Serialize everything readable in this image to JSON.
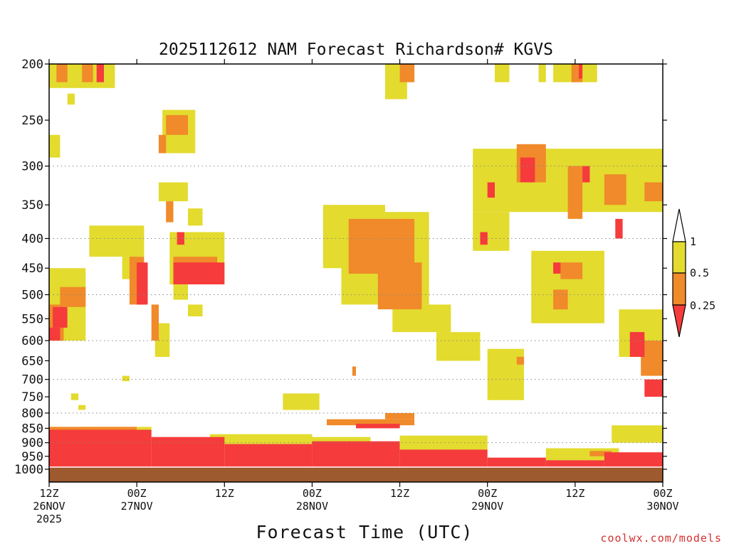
{
  "chart_data": {
    "type": "heatmap",
    "title": "2025112612 NAM Forecast Richardson# KGVS",
    "xlabel": "Forecast Time (UTC)",
    "ylabel": "",
    "y_scale": "log-pressure (hPa, inverted)",
    "ylim": [
      1000,
      200
    ],
    "xlim_hours": [
      0,
      84
    ],
    "y_ticks": [
      200,
      250,
      300,
      350,
      400,
      450,
      500,
      550,
      600,
      650,
      700,
      750,
      800,
      850,
      900,
      950,
      1000
    ],
    "gridlines_at": [
      300,
      400,
      500,
      600,
      700,
      800,
      900
    ],
    "grid": "dotted horizontal lines",
    "x_ticks": [
      {
        "hour": 0,
        "line1": "12Z",
        "line2": "26NOV",
        "line3": "2025"
      },
      {
        "hour": 12,
        "line1": "00Z",
        "line2": "27NOV",
        "line3": ""
      },
      {
        "hour": 24,
        "line1": "12Z",
        "line2": "",
        "line3": ""
      },
      {
        "hour": 36,
        "line1": "00Z",
        "line2": "28NOV",
        "line3": ""
      },
      {
        "hour": 48,
        "line1": "12Z",
        "line2": "",
        "line3": ""
      },
      {
        "hour": 60,
        "line1": "00Z",
        "line2": "29NOV",
        "line3": ""
      },
      {
        "hour": 72,
        "line1": "12Z",
        "line2": "",
        "line3": ""
      },
      {
        "hour": 84,
        "line1": "00Z",
        "line2": "30NOV",
        "line3": ""
      }
    ],
    "colorbar": {
      "placement": "right",
      "bins": [
        {
          "label": "1",
          "color": "#ffffff",
          "range": ">1"
        },
        {
          "label": "0.5",
          "color": "#e3db2e",
          "range": "0.5-1"
        },
        {
          "label": "0.25",
          "color": "#f08a2a",
          "range": "0.25-0.5"
        },
        {
          "label": "",
          "color": "#f53b3b",
          "range": "<0.25"
        }
      ],
      "tick_labels": [
        "1",
        "0.5",
        "0.25"
      ]
    },
    "ground_color": "#9c5a2e",
    "colors": {
      "low": "#f53b3b",
      "mid": "#f08a2a",
      "high": "#e3db2e",
      "ground": "#9c5a2e"
    },
    "regions": [
      {
        "level": "high",
        "t": [
          0,
          9
        ],
        "p": [
          200,
          220
        ]
      },
      {
        "level": "mid",
        "t": [
          1,
          2.5
        ],
        "p": [
          200,
          215
        ]
      },
      {
        "level": "mid",
        "t": [
          4.5,
          6
        ],
        "p": [
          200,
          215
        ]
      },
      {
        "level": "low",
        "t": [
          6.5,
          7.5
        ],
        "p": [
          200,
          215
        ]
      },
      {
        "level": "high",
        "t": [
          2.5,
          3.5
        ],
        "p": [
          225,
          235
        ]
      },
      {
        "level": "high",
        "t": [
          15.5,
          20
        ],
        "p": [
          240,
          285
        ]
      },
      {
        "level": "mid",
        "t": [
          16,
          19
        ],
        "p": [
          245,
          265
        ]
      },
      {
        "level": "mid",
        "t": [
          15,
          16
        ],
        "p": [
          265,
          285
        ]
      },
      {
        "level": "high",
        "t": [
          0,
          1.5
        ],
        "p": [
          265,
          290
        ]
      },
      {
        "level": "high",
        "t": [
          15,
          19
        ],
        "p": [
          320,
          345
        ]
      },
      {
        "level": "mid",
        "t": [
          16,
          17
        ],
        "p": [
          345,
          375
        ]
      },
      {
        "level": "high",
        "t": [
          19,
          21
        ],
        "p": [
          355,
          380
        ]
      },
      {
        "level": "high",
        "t": [
          5.5,
          13
        ],
        "p": [
          380,
          430
        ]
      },
      {
        "level": "high",
        "t": [
          10,
          12
        ],
        "p": [
          430,
          470
        ]
      },
      {
        "level": "mid",
        "t": [
          11,
          13
        ],
        "p": [
          430,
          520
        ]
      },
      {
        "level": "low",
        "t": [
          12,
          13.5
        ],
        "p": [
          440,
          520
        ]
      },
      {
        "level": "mid",
        "t": [
          14,
          15
        ],
        "p": [
          520,
          600
        ]
      },
      {
        "level": "high",
        "t": [
          14.5,
          16.5
        ],
        "p": [
          560,
          640
        ]
      },
      {
        "level": "high",
        "t": [
          16.5,
          24
        ],
        "p": [
          390,
          480
        ]
      },
      {
        "level": "mid",
        "t": [
          17,
          23
        ],
        "p": [
          430,
          460
        ]
      },
      {
        "level": "low",
        "t": [
          17,
          24
        ],
        "p": [
          440,
          480
        ]
      },
      {
        "level": "low",
        "t": [
          17.5,
          18.5
        ],
        "p": [
          390,
          410
        ]
      },
      {
        "level": "high",
        "t": [
          17,
          19
        ],
        "p": [
          480,
          510
        ]
      },
      {
        "level": "high",
        "t": [
          19,
          21
        ],
        "p": [
          520,
          545
        ]
      },
      {
        "level": "high",
        "t": [
          0,
          5
        ],
        "p": [
          450,
          600
        ]
      },
      {
        "level": "mid",
        "t": [
          1.5,
          5
        ],
        "p": [
          485,
          525
        ]
      },
      {
        "level": "mid",
        "t": [
          0,
          2
        ],
        "p": [
          520,
          600
        ]
      },
      {
        "level": "low",
        "t": [
          0.5,
          2.5
        ],
        "p": [
          525,
          570
        ]
      },
      {
        "level": "low",
        "t": [
          0,
          1.5
        ],
        "p": [
          570,
          600
        ]
      },
      {
        "level": "high",
        "t": [
          37.5,
          46
        ],
        "p": [
          350,
          450
        ]
      },
      {
        "level": "high",
        "t": [
          40,
          52
        ],
        "p": [
          360,
          520
        ]
      },
      {
        "level": "mid",
        "t": [
          41,
          50
        ],
        "p": [
          370,
          460
        ]
      },
      {
        "level": "mid",
        "t": [
          45,
          51
        ],
        "p": [
          440,
          530
        ]
      },
      {
        "level": "high",
        "t": [
          47,
          55
        ],
        "p": [
          520,
          580
        ]
      },
      {
        "level": "high",
        "t": [
          53,
          59
        ],
        "p": [
          580,
          650
        ]
      },
      {
        "level": "high",
        "t": [
          46,
          49
        ],
        "p": [
          200,
          230
        ]
      },
      {
        "level": "mid",
        "t": [
          48,
          50
        ],
        "p": [
          200,
          215
        ]
      },
      {
        "level": "high",
        "t": [
          61,
          63
        ],
        "p": [
          200,
          215
        ]
      },
      {
        "level": "high",
        "t": [
          67,
          68
        ],
        "p": [
          200,
          215
        ]
      },
      {
        "level": "high",
        "t": [
          69,
          75
        ],
        "p": [
          200,
          215
        ]
      },
      {
        "level": "mid",
        "t": [
          71.5,
          73
        ],
        "p": [
          200,
          215
        ]
      },
      {
        "level": "low",
        "t": [
          72.5,
          73
        ],
        "p": [
          200,
          212
        ]
      },
      {
        "level": "high",
        "t": [
          58,
          84
        ],
        "p": [
          280,
          360
        ]
      },
      {
        "level": "mid",
        "t": [
          64,
          68
        ],
        "p": [
          275,
          320
        ]
      },
      {
        "level": "low",
        "t": [
          64.5,
          66.5
        ],
        "p": [
          290,
          320
        ]
      },
      {
        "level": "mid",
        "t": [
          71,
          73
        ],
        "p": [
          300,
          370
        ]
      },
      {
        "level": "mid",
        "t": [
          76,
          79
        ],
        "p": [
          310,
          350
        ]
      },
      {
        "level": "mid",
        "t": [
          81.5,
          84
        ],
        "p": [
          320,
          345
        ]
      },
      {
        "level": "low",
        "t": [
          73,
          74
        ],
        "p": [
          300,
          320
        ]
      },
      {
        "level": "low",
        "t": [
          60,
          61
        ],
        "p": [
          320,
          340
        ]
      },
      {
        "level": "low",
        "t": [
          77.5,
          78.5
        ],
        "p": [
          370,
          400
        ]
      },
      {
        "level": "high",
        "t": [
          58,
          63
        ],
        "p": [
          360,
          420
        ]
      },
      {
        "level": "low",
        "t": [
          59,
          60
        ],
        "p": [
          390,
          410
        ]
      },
      {
        "level": "high",
        "t": [
          66,
          76
        ],
        "p": [
          420,
          560
        ]
      },
      {
        "level": "mid",
        "t": [
          70,
          73
        ],
        "p": [
          440,
          470
        ]
      },
      {
        "level": "low",
        "t": [
          69,
          70
        ],
        "p": [
          440,
          460
        ]
      },
      {
        "level": "mid",
        "t": [
          69,
          71
        ],
        "p": [
          490,
          530
        ]
      },
      {
        "level": "high",
        "t": [
          78,
          84
        ],
        "p": [
          530,
          640
        ]
      },
      {
        "level": "mid",
        "t": [
          81,
          84
        ],
        "p": [
          600,
          690
        ]
      },
      {
        "level": "low",
        "t": [
          79.5,
          81.5
        ],
        "p": [
          580,
          640
        ]
      },
      {
        "level": "low",
        "t": [
          81.5,
          84
        ],
        "p": [
          700,
          750
        ]
      },
      {
        "level": "high",
        "t": [
          32,
          37
        ],
        "p": [
          740,
          790
        ]
      },
      {
        "level": "high",
        "t": [
          60,
          65
        ],
        "p": [
          620,
          760
        ]
      },
      {
        "level": "mid",
        "t": [
          64,
          65
        ],
        "p": [
          640,
          660
        ]
      },
      {
        "level": "high",
        "t": [
          10,
          11
        ],
        "p": [
          690,
          705
        ]
      },
      {
        "level": "mid",
        "t": [
          41.5,
          42
        ],
        "p": [
          665,
          690
        ]
      },
      {
        "level": "high",
        "t": [
          3,
          4
        ],
        "p": [
          740,
          760
        ]
      },
      {
        "level": "high",
        "t": [
          4,
          5
        ],
        "p": [
          775,
          790
        ]
      },
      {
        "level": "low",
        "t": [
          0,
          14
        ],
        "p": [
          855,
          1000
        ]
      },
      {
        "level": "low",
        "t": [
          14,
          24
        ],
        "p": [
          880,
          1000
        ]
      },
      {
        "level": "low",
        "t": [
          24,
          36
        ],
        "p": [
          905,
          1000
        ]
      },
      {
        "level": "low",
        "t": [
          36,
          48
        ],
        "p": [
          895,
          1000
        ]
      },
      {
        "level": "low",
        "t": [
          48,
          60
        ],
        "p": [
          925,
          1000
        ]
      },
      {
        "level": "low",
        "t": [
          60,
          68
        ],
        "p": [
          955,
          1000
        ]
      },
      {
        "level": "low",
        "t": [
          68,
          76
        ],
        "p": [
          965,
          1000
        ]
      },
      {
        "level": "low",
        "t": [
          76,
          84
        ],
        "p": [
          935,
          1000
        ]
      },
      {
        "level": "mid",
        "t": [
          0,
          12
        ],
        "p": [
          845,
          865
        ]
      },
      {
        "level": "high",
        "t": [
          5,
          14
        ],
        "p": [
          845,
          860
        ]
      },
      {
        "level": "mid",
        "t": [
          38,
          50
        ],
        "p": [
          820,
          840
        ]
      },
      {
        "level": "low",
        "t": [
          42,
          48
        ],
        "p": [
          835,
          850
        ]
      },
      {
        "level": "mid",
        "t": [
          46,
          50
        ],
        "p": [
          800,
          820
        ]
      },
      {
        "level": "high",
        "t": [
          48,
          60
        ],
        "p": [
          875,
          925
        ]
      },
      {
        "level": "high",
        "t": [
          68,
          78
        ],
        "p": [
          920,
          965
        ]
      },
      {
        "level": "mid",
        "t": [
          74,
          77
        ],
        "p": [
          930,
          950
        ]
      },
      {
        "level": "high",
        "t": [
          77,
          84
        ],
        "p": [
          840,
          900
        ]
      },
      {
        "level": "high",
        "t": [
          22,
          36
        ],
        "p": [
          870,
          905
        ]
      },
      {
        "level": "high",
        "t": [
          36,
          44
        ],
        "p": [
          880,
          900
        ]
      }
    ]
  },
  "footer": {
    "credit": "coolwx.com/models"
  }
}
